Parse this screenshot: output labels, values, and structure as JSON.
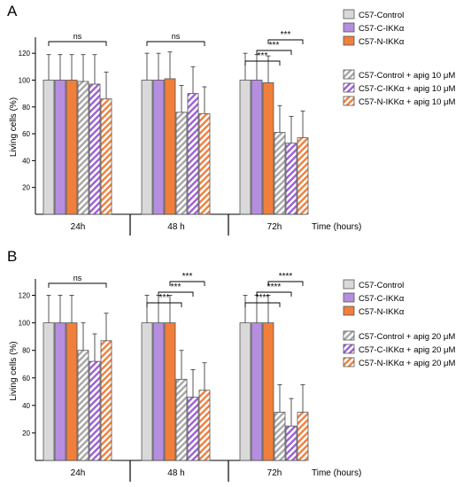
{
  "chart_data": [
    {
      "panel_label": "A",
      "type": "bar",
      "ylabel": "Living cells (%)",
      "xlabel": "Time (hours)",
      "ylim": [
        0,
        130
      ],
      "yticks": [
        20,
        40,
        60,
        80,
        100,
        120
      ],
      "categories": [
        "24h",
        "48 h",
        "72h"
      ],
      "series": [
        {
          "name": "C57-Control",
          "fill": "#d9d9d9",
          "hatch": false,
          "values": [
            100,
            100,
            100
          ],
          "errors": [
            19,
            20,
            20
          ]
        },
        {
          "name": "C57-C-IKKα",
          "fill": "#b58ee0",
          "hatch": false,
          "values": [
            100,
            100,
            100
          ],
          "errors": [
            19,
            20,
            19
          ]
        },
        {
          "name": "C57-N-IKKα",
          "fill": "#f07f3c",
          "hatch": false,
          "values": [
            100,
            101,
            98
          ],
          "errors": [
            19,
            20,
            20
          ]
        },
        {
          "name": "C57-Control + apig 10 μM",
          "fill": "#a6a6a6",
          "hatch": true,
          "values": [
            99,
            76,
            61
          ],
          "errors": [
            20,
            20,
            20
          ]
        },
        {
          "name": "C57-C-IKKα + apig 10 μM",
          "fill": "#9b5fd6",
          "hatch": true,
          "values": [
            97,
            90,
            53
          ],
          "errors": [
            22,
            20,
            20
          ]
        },
        {
          "name": "C57-N-IKKα + apig 10 μM",
          "fill": "#f07f3c",
          "hatch": true,
          "values": [
            86,
            75,
            57
          ],
          "errors": [
            20,
            20,
            20
          ]
        }
      ],
      "annotations": [
        {
          "text": "ns",
          "group": 0,
          "from": 0,
          "to": 5,
          "level": 0
        },
        {
          "text": "ns",
          "group": 1,
          "from": 0,
          "to": 5,
          "level": 0
        },
        {
          "text": "***",
          "group": 2,
          "from": 0,
          "to": 3,
          "level": 0
        },
        {
          "text": "***",
          "group": 2,
          "from": 1,
          "to": 4,
          "level": 1
        },
        {
          "text": "***",
          "group": 2,
          "from": 2,
          "to": 5,
          "level": 2
        }
      ]
    },
    {
      "panel_label": "B",
      "type": "bar",
      "ylabel": "Living cells (%)",
      "xlabel": "Time (hours)",
      "ylim": [
        0,
        130
      ],
      "yticks": [
        20,
        40,
        60,
        80,
        100,
        120
      ],
      "categories": [
        "24h",
        "48 h",
        "72h"
      ],
      "series": [
        {
          "name": "C57-Control",
          "fill": "#d9d9d9",
          "hatch": false,
          "values": [
            100,
            100,
            100
          ],
          "errors": [
            20,
            20,
            20
          ]
        },
        {
          "name": "C57-C-IKKα",
          "fill": "#b58ee0",
          "hatch": false,
          "values": [
            100,
            100,
            100
          ],
          "errors": [
            20,
            20,
            20
          ]
        },
        {
          "name": "C57-N-IKKα",
          "fill": "#f07f3c",
          "hatch": false,
          "values": [
            100,
            100,
            100
          ],
          "errors": [
            20,
            20,
            20
          ]
        },
        {
          "name": "C57-Control + apig 20 μM",
          "fill": "#a6a6a6",
          "hatch": true,
          "values": [
            80,
            59,
            35
          ],
          "errors": [
            20,
            21,
            20
          ]
        },
        {
          "name": "C57-C-IKKα + apig 20 μM",
          "fill": "#9b5fd6",
          "hatch": true,
          "values": [
            72,
            46,
            25
          ],
          "errors": [
            20,
            20,
            20
          ]
        },
        {
          "name": "C57-N-IKKα + apig 20 μM",
          "fill": "#f07f3c",
          "hatch": true,
          "values": [
            87,
            51,
            35
          ],
          "errors": [
            20,
            20,
            20
          ]
        }
      ],
      "annotations": [
        {
          "text": "ns",
          "group": 0,
          "from": 0,
          "to": 5,
          "level": 0
        },
        {
          "text": "***",
          "group": 1,
          "from": 0,
          "to": 3,
          "level": 0
        },
        {
          "text": "***",
          "group": 1,
          "from": 1,
          "to": 4,
          "level": 1
        },
        {
          "text": "***",
          "group": 1,
          "from": 2,
          "to": 5,
          "level": 2
        },
        {
          "text": "****",
          "group": 2,
          "from": 0,
          "to": 3,
          "level": 0
        },
        {
          "text": "****",
          "group": 2,
          "from": 1,
          "to": 4,
          "level": 1
        },
        {
          "text": "****",
          "group": 2,
          "from": 2,
          "to": 5,
          "level": 2
        }
      ]
    }
  ]
}
